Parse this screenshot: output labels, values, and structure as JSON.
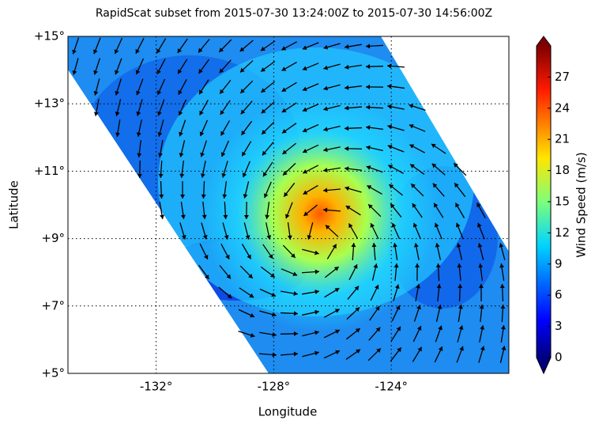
{
  "title": "RapidScat subset from 2015-07-30 13:24:00Z to 2015-07-30 14:56:00Z",
  "map": {
    "xlabel": "Longitude",
    "ylabel": "Latitude",
    "xlim": [
      -135,
      -120
    ],
    "ylim": [
      5,
      15
    ],
    "xticks": [
      {
        "value": -132,
        "label": "-132°"
      },
      {
        "value": -128,
        "label": "-128°"
      },
      {
        "value": -124,
        "label": "-124°"
      }
    ],
    "yticks": [
      {
        "value": 5,
        "label": "+5°"
      },
      {
        "value": 7,
        "label": "+7°"
      },
      {
        "value": 9,
        "label": "+9°"
      },
      {
        "value": 11,
        "label": "+11°"
      },
      {
        "value": 13,
        "label": "+13°"
      },
      {
        "value": 15,
        "label": "+15°"
      }
    ]
  },
  "colorbar": {
    "label": "Wind Speed (m/s)",
    "lim": [
      0,
      30
    ],
    "ticks": [
      0,
      3,
      6,
      9,
      12,
      15,
      18,
      21,
      24,
      27
    ]
  }
}
